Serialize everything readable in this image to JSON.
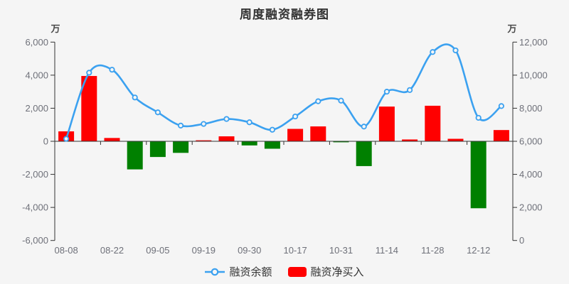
{
  "title": "周度融资融券图",
  "left_axis": {
    "unit": "万",
    "tick_labels": [
      "6,000",
      "4,000",
      "2,000",
      "0",
      "-2,000",
      "-4,000",
      "-6,000"
    ],
    "min": -6000,
    "max": 6000,
    "interval": 2000
  },
  "right_axis": {
    "unit": "万",
    "tick_labels": [
      "12,000",
      "10,000",
      "8,000",
      "6,000",
      "4,000",
      "2,000",
      "0"
    ],
    "min": 0,
    "max": 12000,
    "interval": 2000
  },
  "x_axis": {
    "tick_labels": [
      "08-08",
      "08-22",
      "09-05",
      "09-19",
      "09-30",
      "10-17",
      "10-31",
      "11-14",
      "11-28",
      "12-12"
    ]
  },
  "legend": {
    "items": [
      {
        "label": "融资余额",
        "icon": "line-circle-icon",
        "color": "#3ba1f0"
      },
      {
        "label": "融资净买入",
        "icon": "bar-swatch-icon",
        "color": "#ff0000"
      }
    ]
  },
  "colors": {
    "background": "#f5f5f5",
    "positive_bar": "#ff0000",
    "negative_bar": "#008000",
    "line": "#3ba1f0",
    "marker_fill": "#f6f6f6",
    "axis_line": "#333333",
    "tick_label": "#6e7079",
    "title": "#333333"
  },
  "chart_data": {
    "type": "bar",
    "subtype": "bar+line dual-axis combo",
    "title": "周度融资融券图",
    "x_count": 20,
    "x_tick_labels": [
      "08-08",
      "08-22",
      "09-05",
      "09-19",
      "09-30",
      "10-17",
      "10-31",
      "11-14",
      "11-28",
      "12-12"
    ],
    "x_tick_label_point_indices": [
      1,
      3,
      5,
      7,
      9,
      11,
      13,
      15,
      17,
      19
    ],
    "left_axis_range": [
      -6000,
      6000
    ],
    "right_axis_range": [
      0,
      12000
    ],
    "grid": false,
    "legend_position": "bottom",
    "series": [
      {
        "name": "融资余额",
        "type": "line",
        "y_axis": "right",
        "smooth": true,
        "values": [
          6150,
          10150,
          10330,
          8650,
          7750,
          6950,
          7050,
          7350,
          7150,
          6700,
          7500,
          8420,
          8460,
          6890,
          9000,
          9100,
          11400,
          11500,
          7420,
          8130
        ]
      },
      {
        "name": "融资净买入",
        "type": "bar",
        "y_axis": "left",
        "values": [
          600,
          3950,
          200,
          -1700,
          -950,
          -700,
          60,
          300,
          -250,
          -450,
          750,
          900,
          -60,
          -1500,
          2100,
          110,
          2150,
          150,
          -4050,
          680
        ]
      }
    ]
  }
}
